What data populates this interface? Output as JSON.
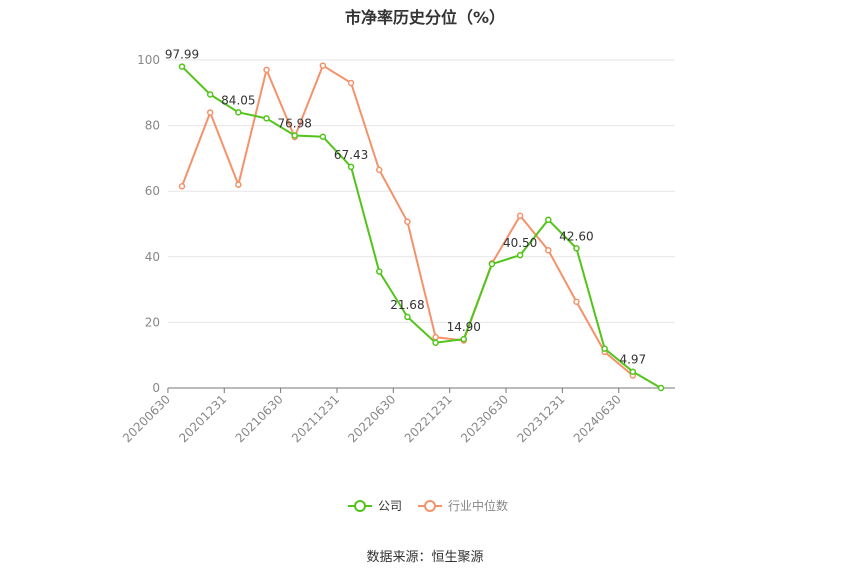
{
  "chart_data": {
    "type": "line",
    "title": "市净率历史分位（%）",
    "x": [
      "20200630",
      "20200930",
      "20201231",
      "20210331",
      "20210630",
      "20210930",
      "20211231",
      "20220331",
      "20220630",
      "20220930",
      "20221231",
      "20230331",
      "20230630",
      "20230930",
      "20231231",
      "20240331",
      "20240630",
      "20240930"
    ],
    "x_tick_labels": [
      "20200630",
      "20201231",
      "20210630",
      "20211231",
      "20220630",
      "20221231",
      "20230630",
      "20231231",
      "20240630"
    ],
    "ylim": [
      0,
      100
    ],
    "y_ticks": [
      0,
      20,
      40,
      60,
      80,
      100
    ],
    "grid": true,
    "legend_position": "bottom",
    "series": [
      {
        "name": "公司",
        "color": "#52c41a",
        "values": [
          97.99,
          89.5,
          84.05,
          82.2,
          76.98,
          76.6,
          67.43,
          35.5,
          21.68,
          13.8,
          14.9,
          37.8,
          40.5,
          51.3,
          42.6,
          12.0,
          4.97,
          0.0
        ],
        "labels": {
          "0": "97.99",
          "2": "84.05",
          "4": "76.98",
          "6": "67.43",
          "8": "21.68",
          "10": "14.90",
          "12": "40.50",
          "14": "42.60",
          "16": "4.97"
        }
      },
      {
        "name": "行业中位数",
        "color": "#f4936b",
        "values": [
          61.5,
          84.0,
          62.0,
          97.0,
          76.5,
          98.3,
          93.0,
          66.5,
          50.7,
          15.5,
          14.5,
          38.0,
          52.5,
          42.0,
          26.3,
          11.0,
          3.8,
          null
        ]
      }
    ]
  },
  "source_text": "数据来源：恒生聚源"
}
